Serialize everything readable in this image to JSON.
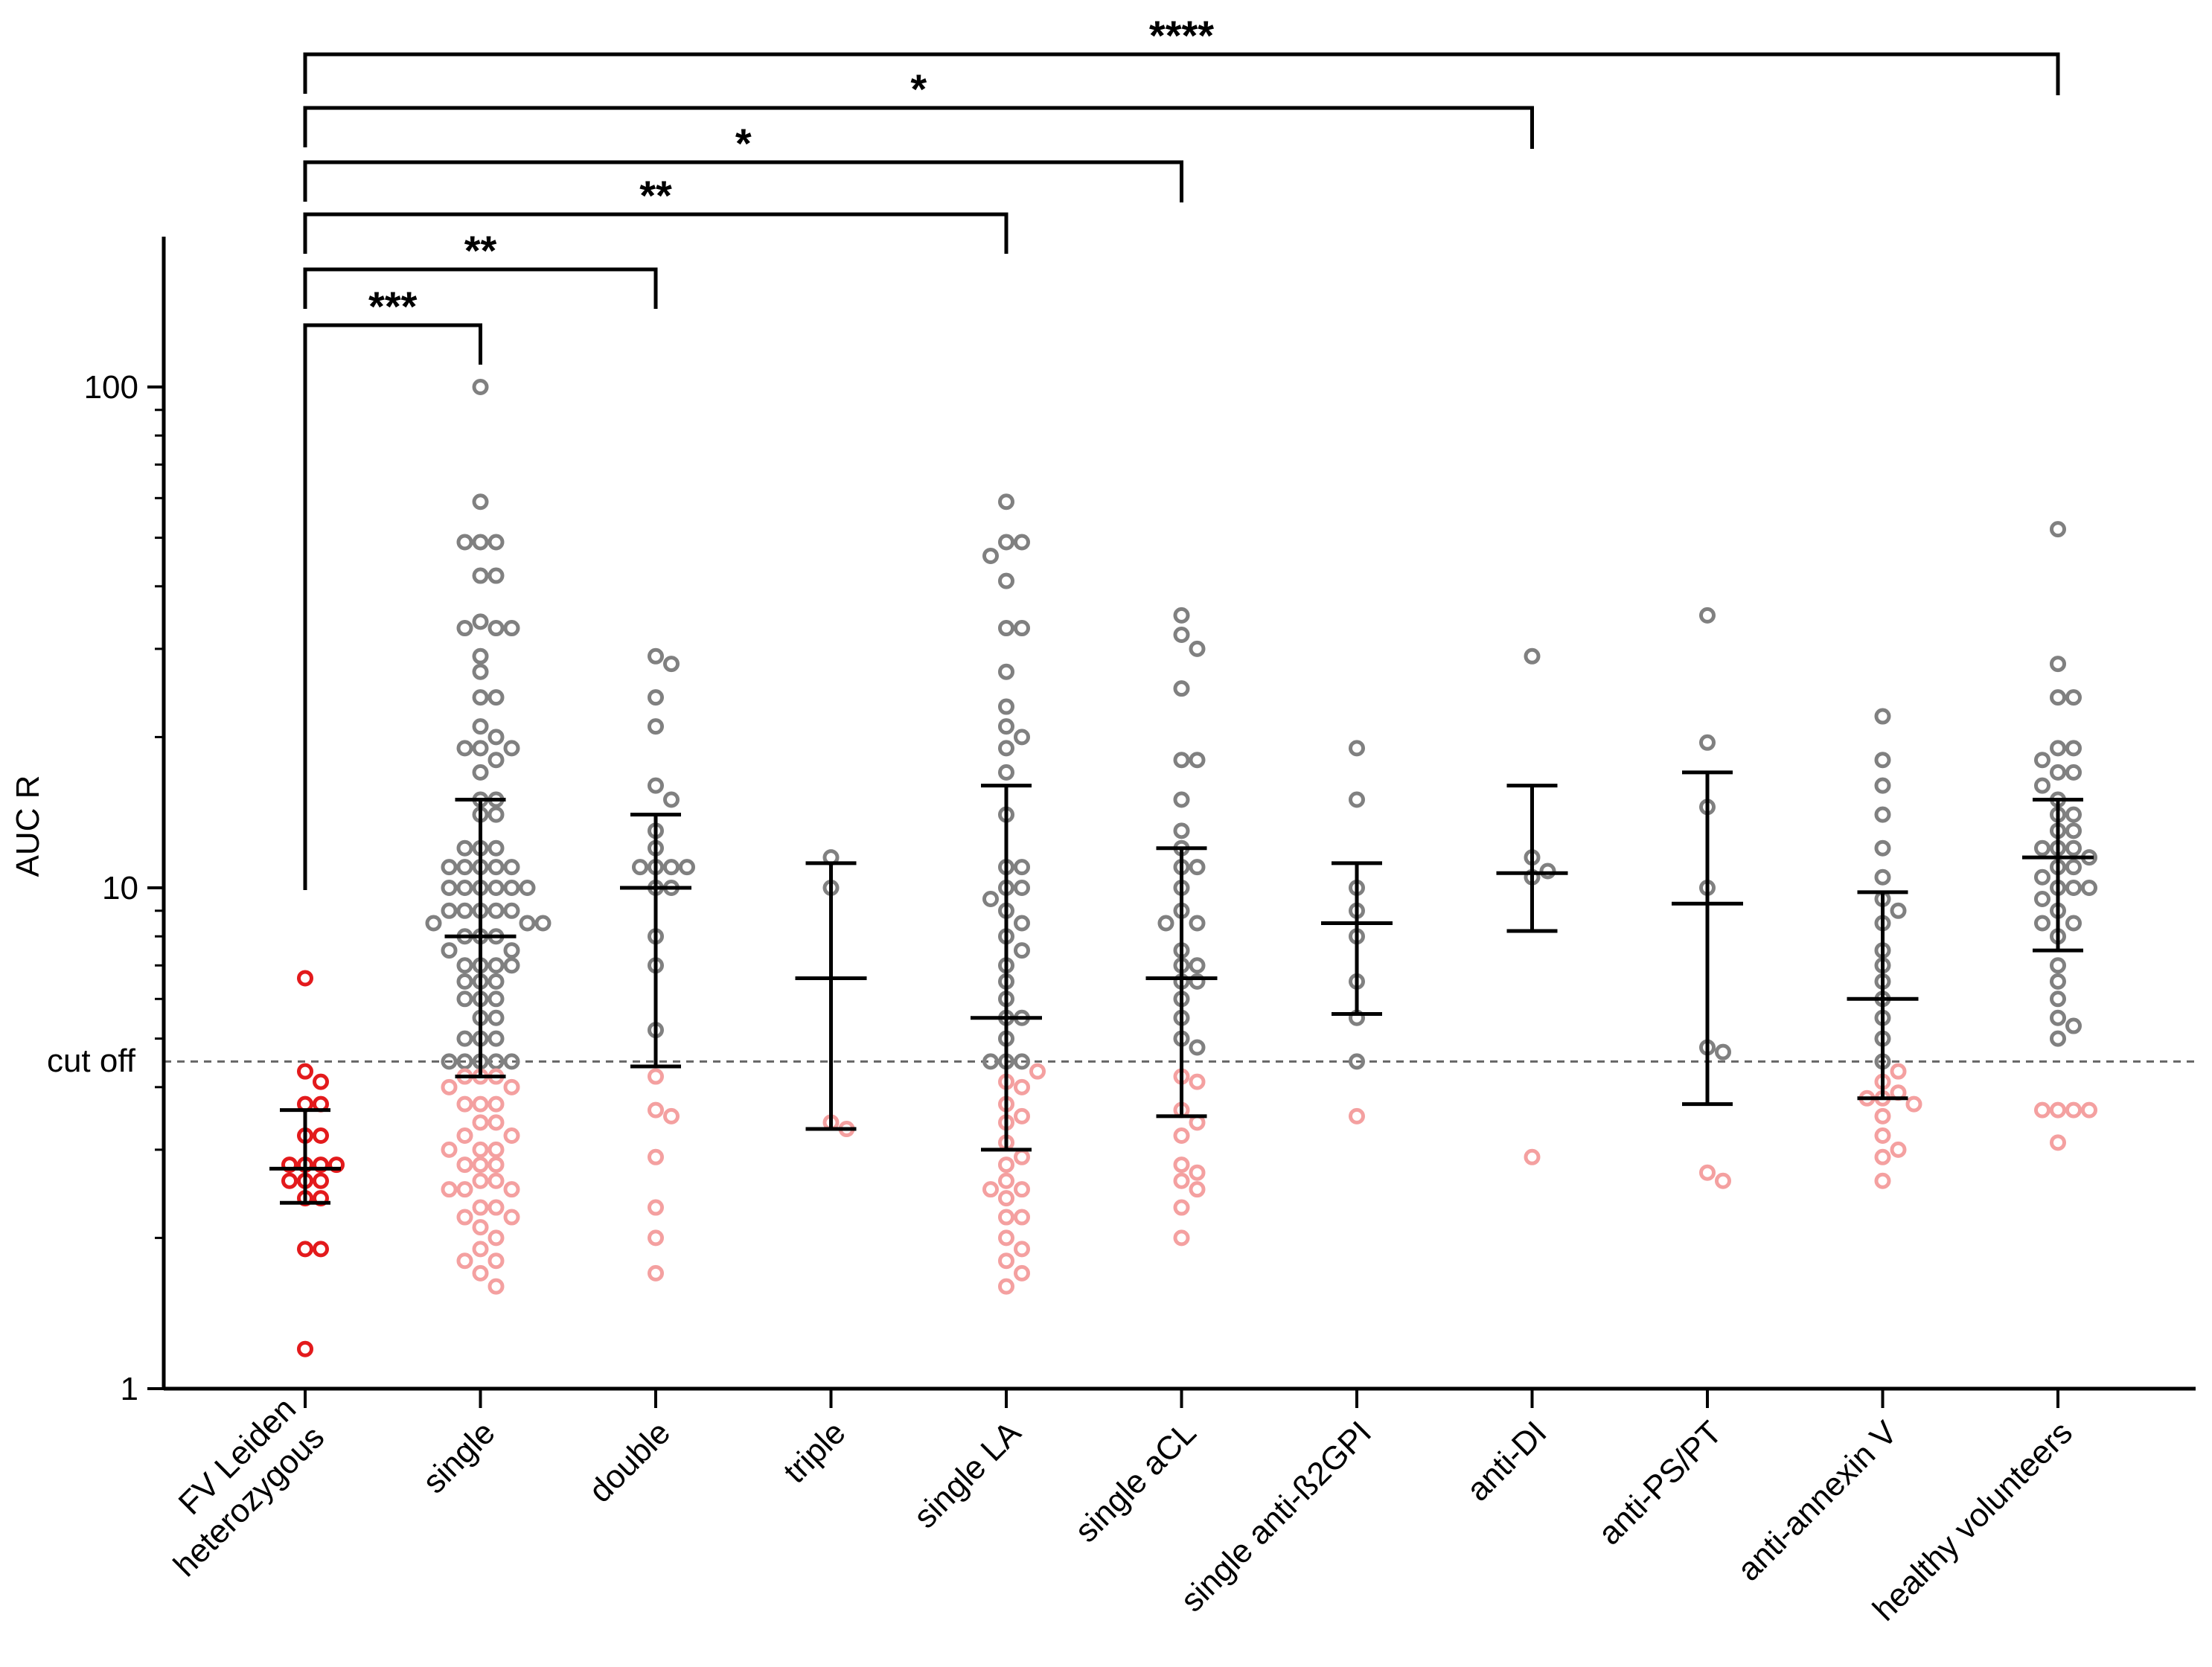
{
  "chart_data": {
    "type": "scatter",
    "ylabel": "AUC R",
    "xlabel": "",
    "yscale": "log",
    "ylim": [
      1,
      200
    ],
    "yticks": [
      {
        "value": 1,
        "label": "1"
      },
      {
        "value": 10,
        "label": "10"
      },
      {
        "value": 100,
        "label": "100"
      }
    ],
    "cutoff": {
      "value": 4.5,
      "label": "cut off"
    },
    "categories": [
      {
        "label": "FV Leiden\nheterozygous",
        "mean": 2.75,
        "lower": 2.35,
        "upper": 3.6,
        "points": [
          6.6,
          4.1,
          4.3,
          3.7,
          3.7,
          3.2,
          3.2,
          2.8,
          2.8,
          2.8,
          2.8,
          2.6,
          2.6,
          2.6,
          2.4,
          2.4,
          1.9,
          1.9,
          1.2
        ]
      },
      {
        "label": "single",
        "mean": 8.0,
        "lower": 4.2,
        "upper": 15.0,
        "points": [
          100,
          59,
          49,
          49,
          49,
          42,
          42,
          34,
          33,
          33,
          33,
          29,
          27,
          24,
          24,
          21,
          20,
          19,
          19,
          19,
          18,
          17,
          15,
          15,
          14,
          14,
          12,
          12,
          12,
          11,
          11,
          11,
          11,
          11,
          10,
          10,
          10,
          10,
          10,
          10,
          9,
          9,
          9,
          9,
          9,
          8.5,
          8.5,
          8.5,
          8,
          8,
          8,
          7.5,
          7.5,
          7,
          7,
          7,
          7,
          6.5,
          6.5,
          6.5,
          6,
          6,
          6,
          5.5,
          5.5,
          5,
          5,
          5,
          4.5,
          4.5,
          4.5,
          4.5,
          4.5,
          4.2,
          4.2,
          4.2,
          4.0,
          4.0,
          3.7,
          3.7,
          3.7,
          3.4,
          3.4,
          3.2,
          3.2,
          3.0,
          3.0,
          3.0,
          2.8,
          2.8,
          2.8,
          2.6,
          2.6,
          2.5,
          2.5,
          2.5,
          2.3,
          2.3,
          2.2,
          2.2,
          2.1,
          2.0,
          1.9,
          1.8,
          1.8,
          1.7,
          1.6
        ]
      },
      {
        "label": "double",
        "mean": 10.0,
        "lower": 4.4,
        "upper": 14.0,
        "points": [
          29,
          28,
          24,
          21,
          16,
          15,
          13,
          12,
          11,
          11,
          11,
          11,
          10,
          10,
          8,
          7,
          5.2,
          4.2,
          3.6,
          3.5,
          2.9,
          2.3,
          2.0,
          1.7
        ]
      },
      {
        "label": "triple",
        "mean": 6.6,
        "lower": 3.3,
        "upper": 11.2,
        "points": [
          11.5,
          10.0,
          3.4,
          3.3
        ]
      },
      {
        "label": "single LA",
        "mean": 5.5,
        "lower": 3.0,
        "upper": 16.0,
        "points": [
          59,
          49,
          49,
          46,
          41,
          33,
          33,
          27,
          23,
          21,
          20,
          19,
          17,
          14,
          11,
          11,
          10,
          10,
          9.5,
          9,
          8.5,
          8,
          7.5,
          7,
          6.5,
          6,
          5.5,
          5.5,
          5,
          4.5,
          4.5,
          4.5,
          4.3,
          4.1,
          4.0,
          3.7,
          3.5,
          3.4,
          3.1,
          2.9,
          2.8,
          2.6,
          2.5,
          2.5,
          2.4,
          2.2,
          2.2,
          2.0,
          1.9,
          1.8,
          1.7,
          1.6
        ]
      },
      {
        "label": "single aCL",
        "mean": 6.6,
        "lower": 3.5,
        "upper": 12.0,
        "points": [
          35,
          32,
          30,
          25,
          18,
          18,
          15,
          13,
          12,
          11,
          11,
          10,
          9,
          8.5,
          8.5,
          7.5,
          7,
          7,
          6.5,
          6.5,
          6,
          5.5,
          5,
          4.8,
          4.2,
          4.1,
          3.6,
          3.4,
          3.2,
          2.8,
          2.7,
          2.6,
          2.5,
          2.3,
          2.0
        ]
      },
      {
        "label": "single anti-ß2GPI",
        "mean": 8.5,
        "lower": 5.6,
        "upper": 11.2,
        "points": [
          19,
          15,
          10,
          9,
          8,
          6.5,
          5.5,
          4.5,
          3.5
        ]
      },
      {
        "label": "anti-DI",
        "mean": 10.7,
        "lower": 8.2,
        "upper": 16.0,
        "points": [
          29,
          11.5,
          10.8,
          10.5,
          2.9
        ]
      },
      {
        "label": "anti-PS/PT",
        "mean": 9.3,
        "lower": 3.7,
        "upper": 17.0,
        "points": [
          35,
          19.5,
          14.5,
          10,
          4.8,
          4.7,
          2.7,
          2.6
        ]
      },
      {
        "label": "anti-annexin V",
        "mean": 6.0,
        "lower": 3.8,
        "upper": 9.8,
        "points": [
          22,
          18,
          16,
          14,
          12,
          10.5,
          9.5,
          9,
          8.5,
          7.5,
          7,
          6.5,
          6,
          5.5,
          5,
          4.5,
          4.3,
          4.1,
          3.9,
          3.8,
          3.8,
          3.7,
          3.5,
          3.2,
          3.0,
          2.9,
          2.6
        ]
      },
      {
        "label": "healthy volunteers",
        "mean": 11.5,
        "lower": 7.5,
        "upper": 15.0,
        "points": [
          52,
          28,
          24,
          24,
          19,
          19,
          18,
          17,
          17,
          16,
          15,
          14,
          14,
          13,
          13,
          12,
          12,
          12,
          11.5,
          11,
          11,
          10.5,
          10,
          10,
          10,
          9.5,
          9,
          8.5,
          8.5,
          8,
          7,
          6.5,
          6,
          5.5,
          5.3,
          5.0,
          3.6,
          3.6,
          3.6,
          3.6,
          3.1
        ]
      }
    ],
    "comparisons": [
      {
        "from": 0,
        "to": 1,
        "label": "***"
      },
      {
        "from": 0,
        "to": 2,
        "label": "**"
      },
      {
        "from": 0,
        "to": 4,
        "label": "**"
      },
      {
        "from": 0,
        "to": 5,
        "label": "*"
      },
      {
        "from": 0,
        "to": 7,
        "label": "*"
      },
      {
        "from": 0,
        "to": 10,
        "label": "****"
      }
    ],
    "colors": {
      "above_cutoff": "#808080",
      "below_cutoff": "#f4a0a0",
      "reference_group": "#e31a1c",
      "axis": "#000000",
      "cutoff_line": "#666666"
    }
  }
}
